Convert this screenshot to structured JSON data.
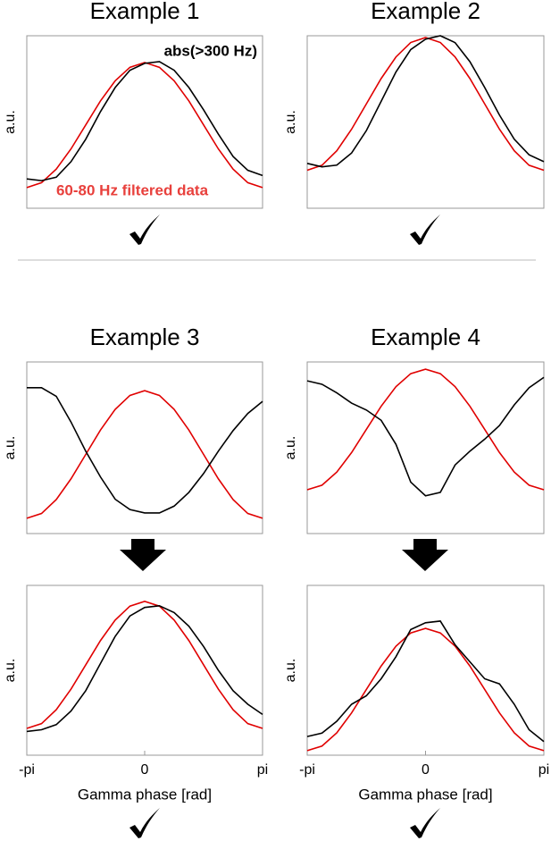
{
  "chart_data": [
    {
      "type": "line",
      "title": "Example 1",
      "ylabel": "a.u.",
      "xlim": [
        -3.1416,
        3.1416
      ],
      "ylim": [
        0,
        1
      ],
      "x": [
        -3.1416,
        -2.7489,
        -2.3562,
        -1.9635,
        -1.5708,
        -1.1781,
        -0.7854,
        -0.3927,
        0,
        0.3927,
        0.7854,
        1.1781,
        1.5708,
        1.9635,
        2.3562,
        2.7489,
        3.1416
      ],
      "annotations": [
        {
          "text": "abs(>300 Hz)",
          "color": "#000000"
        },
        {
          "text": "60-80 Hz filtered data",
          "color": "#e8403c"
        }
      ],
      "series": [
        {
          "color": "#e00000",
          "values": [
            0.12,
            0.148,
            0.227,
            0.344,
            0.483,
            0.622,
            0.739,
            0.817,
            0.845,
            0.817,
            0.739,
            0.622,
            0.483,
            0.344,
            0.227,
            0.148,
            0.12
          ]
        },
        {
          "color": "#000000",
          "values": [
            0.17,
            0.16,
            0.18,
            0.27,
            0.4,
            0.56,
            0.7,
            0.8,
            0.84,
            0.85,
            0.8,
            0.7,
            0.57,
            0.43,
            0.3,
            0.22,
            0.19
          ]
        }
      ]
    },
    {
      "type": "line",
      "title": "Example 2",
      "ylabel": "a.u.",
      "xlim": [
        -3.1416,
        3.1416
      ],
      "ylim": [
        0,
        1
      ],
      "x": [
        -3.1416,
        -2.7489,
        -2.3562,
        -1.9635,
        -1.5708,
        -1.1781,
        -0.7854,
        -0.3927,
        0,
        0.3927,
        0.7854,
        1.1781,
        1.5708,
        1.9635,
        2.3562,
        2.7489,
        3.1416
      ],
      "series": [
        {
          "color": "#e00000",
          "values": [
            0.22,
            0.249,
            0.333,
            0.458,
            0.605,
            0.752,
            0.877,
            0.961,
            0.99,
            0.961,
            0.877,
            0.752,
            0.605,
            0.458,
            0.333,
            0.249,
            0.22
          ]
        },
        {
          "color": "#000000",
          "values": [
            0.26,
            0.24,
            0.25,
            0.32,
            0.45,
            0.62,
            0.79,
            0.92,
            0.98,
            1.0,
            0.96,
            0.85,
            0.7,
            0.54,
            0.4,
            0.31,
            0.27
          ]
        }
      ]
    },
    {
      "type": "line",
      "title": "Example 3",
      "ylabel": "a.u.",
      "xlim": [
        -3.1416,
        3.1416
      ],
      "ylim": [
        0,
        1
      ],
      "x": [
        -3.1416,
        -2.7489,
        -2.3562,
        -1.9635,
        -1.5708,
        -1.1781,
        -0.7854,
        -0.3927,
        0,
        0.3927,
        0.7854,
        1.1781,
        1.5708,
        1.9635,
        2.3562,
        2.7489,
        3.1416
      ],
      "series": [
        {
          "color": "#e00000",
          "values": [
            0.089,
            0.117,
            0.198,
            0.319,
            0.461,
            0.603,
            0.724,
            0.805,
            0.833,
            0.805,
            0.724,
            0.603,
            0.461,
            0.319,
            0.198,
            0.117,
            0.089
          ]
        },
        {
          "color": "#000000",
          "values": [
            0.85,
            0.85,
            0.8,
            0.65,
            0.48,
            0.33,
            0.2,
            0.14,
            0.12,
            0.12,
            0.16,
            0.24,
            0.35,
            0.48,
            0.6,
            0.7,
            0.77
          ]
        }
      ]
    },
    {
      "type": "line",
      "title": "Example 4",
      "ylabel": "a.u.",
      "xlim": [
        -3.1416,
        3.1416
      ],
      "ylim": [
        0,
        1
      ],
      "x": [
        -3.1416,
        -2.7489,
        -2.3562,
        -1.9635,
        -1.5708,
        -1.1781,
        -0.7854,
        -0.3927,
        0,
        0.3927,
        0.7854,
        1.1781,
        1.5708,
        1.9635,
        2.3562,
        2.7489,
        3.1416
      ],
      "series": [
        {
          "color": "#e00000",
          "values": [
            0.255,
            0.282,
            0.358,
            0.472,
            0.607,
            0.742,
            0.856,
            0.932,
            0.958,
            0.932,
            0.856,
            0.742,
            0.607,
            0.472,
            0.358,
            0.282,
            0.255
          ]
        },
        {
          "color": "#000000",
          "values": [
            0.89,
            0.87,
            0.82,
            0.76,
            0.72,
            0.66,
            0.52,
            0.3,
            0.22,
            0.24,
            0.4,
            0.48,
            0.55,
            0.63,
            0.75,
            0.85,
            0.91
          ]
        }
      ]
    },
    {
      "type": "line",
      "ylabel": "a.u.",
      "xlabel": "Gamma phase [rad]",
      "xlim": [
        -3.1416,
        3.1416
      ],
      "ylim": [
        0,
        1
      ],
      "xticks": [
        {
          "value": -3.1416,
          "label": "-pi"
        },
        0,
        {
          "value": 3.1416,
          "label": "pi"
        }
      ],
      "x": [
        -3.1416,
        -2.7489,
        -2.3562,
        -1.9635,
        -1.5708,
        -1.1781,
        -0.7854,
        -0.3927,
        0,
        0.3927,
        0.7854,
        1.1781,
        1.5708,
        1.9635,
        2.3562,
        2.7489,
        3.1416
      ],
      "series": [
        {
          "color": "#e00000",
          "values": [
            0.158,
            0.186,
            0.268,
            0.389,
            0.532,
            0.675,
            0.796,
            0.878,
            0.906,
            0.878,
            0.796,
            0.675,
            0.532,
            0.389,
            0.268,
            0.186,
            0.158
          ]
        },
        {
          "color": "#000000",
          "values": [
            0.14,
            0.15,
            0.18,
            0.26,
            0.38,
            0.54,
            0.7,
            0.82,
            0.87,
            0.88,
            0.84,
            0.76,
            0.64,
            0.5,
            0.38,
            0.3,
            0.24
          ]
        }
      ]
    },
    {
      "type": "line",
      "ylabel": "a.u.",
      "xlabel": "Gamma phase [rad]",
      "xlim": [
        -3.1416,
        3.1416
      ],
      "ylim": [
        0,
        1
      ],
      "xticks": [
        {
          "value": -3.1416,
          "label": "-pi"
        },
        0,
        {
          "value": 3.1416,
          "label": "pi"
        }
      ],
      "x": [
        -3.1416,
        -2.7489,
        -2.3562,
        -1.9635,
        -1.5708,
        -1.1781,
        -0.7854,
        -0.3927,
        0,
        0.3927,
        0.7854,
        1.1781,
        1.5708,
        1.9635,
        2.3562,
        2.7489,
        3.1416
      ],
      "series": [
        {
          "color": "#e00000",
          "values": [
            0.027,
            0.054,
            0.132,
            0.249,
            0.387,
            0.525,
            0.642,
            0.72,
            0.747,
            0.72,
            0.642,
            0.525,
            0.387,
            0.249,
            0.132,
            0.054,
            0.027
          ]
        },
        {
          "color": "#000000",
          "values": [
            0.11,
            0.13,
            0.2,
            0.3,
            0.35,
            0.45,
            0.58,
            0.74,
            0.78,
            0.79,
            0.65,
            0.55,
            0.45,
            0.42,
            0.3,
            0.15,
            0.08
          ]
        }
      ]
    }
  ]
}
